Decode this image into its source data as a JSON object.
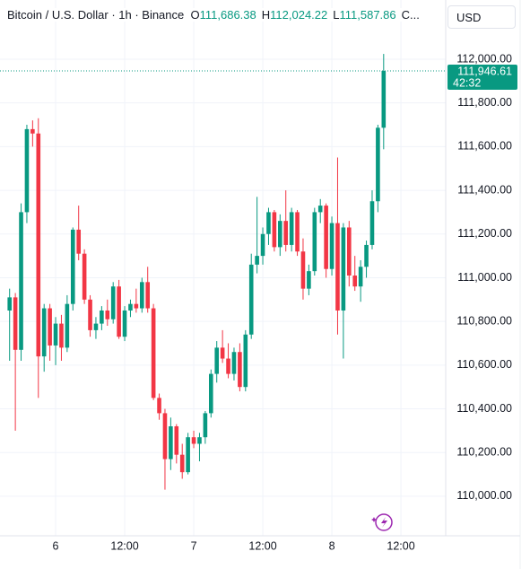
{
  "header": {
    "symbol": "Bitcoin / U.S. Dollar · 1h · Binance",
    "items": [
      {
        "key": "O",
        "label": "111,686.38"
      },
      {
        "key": "H",
        "label": "112,024.22"
      },
      {
        "key": "L",
        "label": "111,587.86"
      }
    ],
    "more": "C..."
  },
  "currency": "USD",
  "chart_data": {
    "type": "candlestick",
    "categories": [
      null,
      null,
      null,
      null,
      null,
      null,
      null,
      null,
      "6",
      null,
      null,
      null,
      null,
      null,
      null,
      null,
      null,
      null,
      null,
      null,
      "12:00",
      null,
      null,
      null,
      null,
      null,
      null,
      null,
      null,
      null,
      null,
      null,
      "7",
      null,
      null,
      null,
      null,
      null,
      null,
      null,
      null,
      null,
      null,
      null,
      "12:00",
      null,
      null,
      null,
      null,
      null,
      null,
      null,
      null,
      null,
      null,
      null,
      "8",
      null,
      null,
      null,
      null,
      null,
      null,
      null,
      null,
      null,
      null,
      null,
      "12:00",
      null,
      null,
      null,
      null,
      null,
      null,
      null
    ],
    "open": [
      110850,
      110910,
      110670,
      111300,
      111680,
      111660,
      110640,
      110860,
      110690,
      110790,
      110680,
      110880,
      111220,
      111110,
      110900,
      110760,
      110790,
      110850,
      110810,
      110960,
      110730,
      110850,
      110880,
      110860,
      110980,
      110860,
      110450,
      110380,
      110170,
      110320,
      110190,
      110110,
      110270,
      110240,
      110270,
      110380,
      110560,
      110680,
      110630,
      110560,
      110660,
      110500,
      110740,
      111060,
      111100,
      111200,
      111300,
      111140,
      111260,
      111150,
      111300,
      111120,
      110950,
      111030,
      111300,
      111330,
      111040,
      111250,
      110850,
      111230,
      111010,
      110960,
      111050,
      111150,
      111350,
      111686.38,
      null,
      null,
      null,
      null,
      null,
      null,
      null,
      null,
      null,
      null
    ],
    "high": [
      110950,
      110930,
      111340,
      111700,
      111720,
      111730,
      110880,
      110880,
      110820,
      110830,
      110920,
      111230,
      111330,
      111130,
      110920,
      110820,
      110870,
      110900,
      110980,
      110990,
      110870,
      110900,
      110950,
      111000,
      111050,
      110880,
      110470,
      110400,
      110360,
      110330,
      110240,
      110290,
      110300,
      110290,
      110390,
      110580,
      110710,
      110760,
      110700,
      110680,
      110700,
      110760,
      111110,
      111370,
      111230,
      111320,
      111310,
      111290,
      111400,
      111320,
      111310,
      111180,
      111060,
      111320,
      111360,
      111340,
      111280,
      111550,
      111250,
      111260,
      111100,
      111080,
      111170,
      111400,
      111700,
      112024.22,
      null,
      null,
      null,
      null,
      null,
      null,
      null,
      null,
      null,
      null
    ],
    "low": [
      110620,
      110300,
      110620,
      111250,
      111600,
      110450,
      110570,
      110620,
      110600,
      110620,
      110660,
      110850,
      111080,
      110880,
      110730,
      110720,
      110760,
      110780,
      110790,
      110720,
      110710,
      110820,
      110840,
      110840,
      110840,
      110440,
      110350,
      110030,
      110120,
      110150,
      110080,
      110100,
      110220,
      110160,
      110240,
      110360,
      110520,
      110610,
      110540,
      110530,
      110480,
      110480,
      110720,
      111020,
      111060,
      111150,
      111120,
      111100,
      111120,
      111120,
      111100,
      110900,
      110920,
      111010,
      111250,
      111000,
      111010,
      110740,
      110630,
      110960,
      110940,
      110890,
      111000,
      111130,
      111300,
      111587.86,
      null,
      null,
      null,
      null,
      null,
      null,
      null,
      null,
      null,
      null
    ],
    "close": [
      110910,
      110670,
      111300,
      111680,
      111660,
      110640,
      110860,
      110690,
      110790,
      110680,
      110880,
      111220,
      111110,
      110900,
      110760,
      110790,
      110850,
      110810,
      110960,
      110730,
      110850,
      110880,
      110860,
      110980,
      110860,
      110450,
      110380,
      110170,
      110320,
      110190,
      110110,
      110270,
      110240,
      110270,
      110380,
      110560,
      110680,
      110630,
      110560,
      110660,
      110500,
      110740,
      111060,
      111100,
      111200,
      111300,
      111140,
      111260,
      111150,
      111300,
      111120,
      110950,
      111030,
      111300,
      111330,
      111040,
      111250,
      110850,
      111230,
      111010,
      110960,
      111050,
      111150,
      111350,
      111686.38,
      111946.61,
      null,
      null,
      null,
      null,
      null,
      null,
      null,
      null,
      null,
      null
    ],
    "up_color": "#089981",
    "down_color": "#f23645",
    "ylim": [
      109819,
      112271
    ],
    "yticks": [
      {
        "value": 110000,
        "label": "110,000.00"
      },
      {
        "value": 110200,
        "label": "110,200.00"
      },
      {
        "value": 110400,
        "label": "110,400.00"
      },
      {
        "value": 110600,
        "label": "110,600.00"
      },
      {
        "value": 110800,
        "label": "110,800.00"
      },
      {
        "value": 111000,
        "label": "111,000.00"
      },
      {
        "value": 111200,
        "label": "111,200.00"
      },
      {
        "value": 111400,
        "label": "111,400.00"
      },
      {
        "value": 111600,
        "label": "111,600.00"
      },
      {
        "value": 111800,
        "label": "111,800.00"
      },
      {
        "value": 112000,
        "label": "112,000.00"
      }
    ],
    "grid": true,
    "last_price": {
      "value": 111946.61,
      "label": "111,946.61"
    },
    "countdown": "42:32"
  }
}
